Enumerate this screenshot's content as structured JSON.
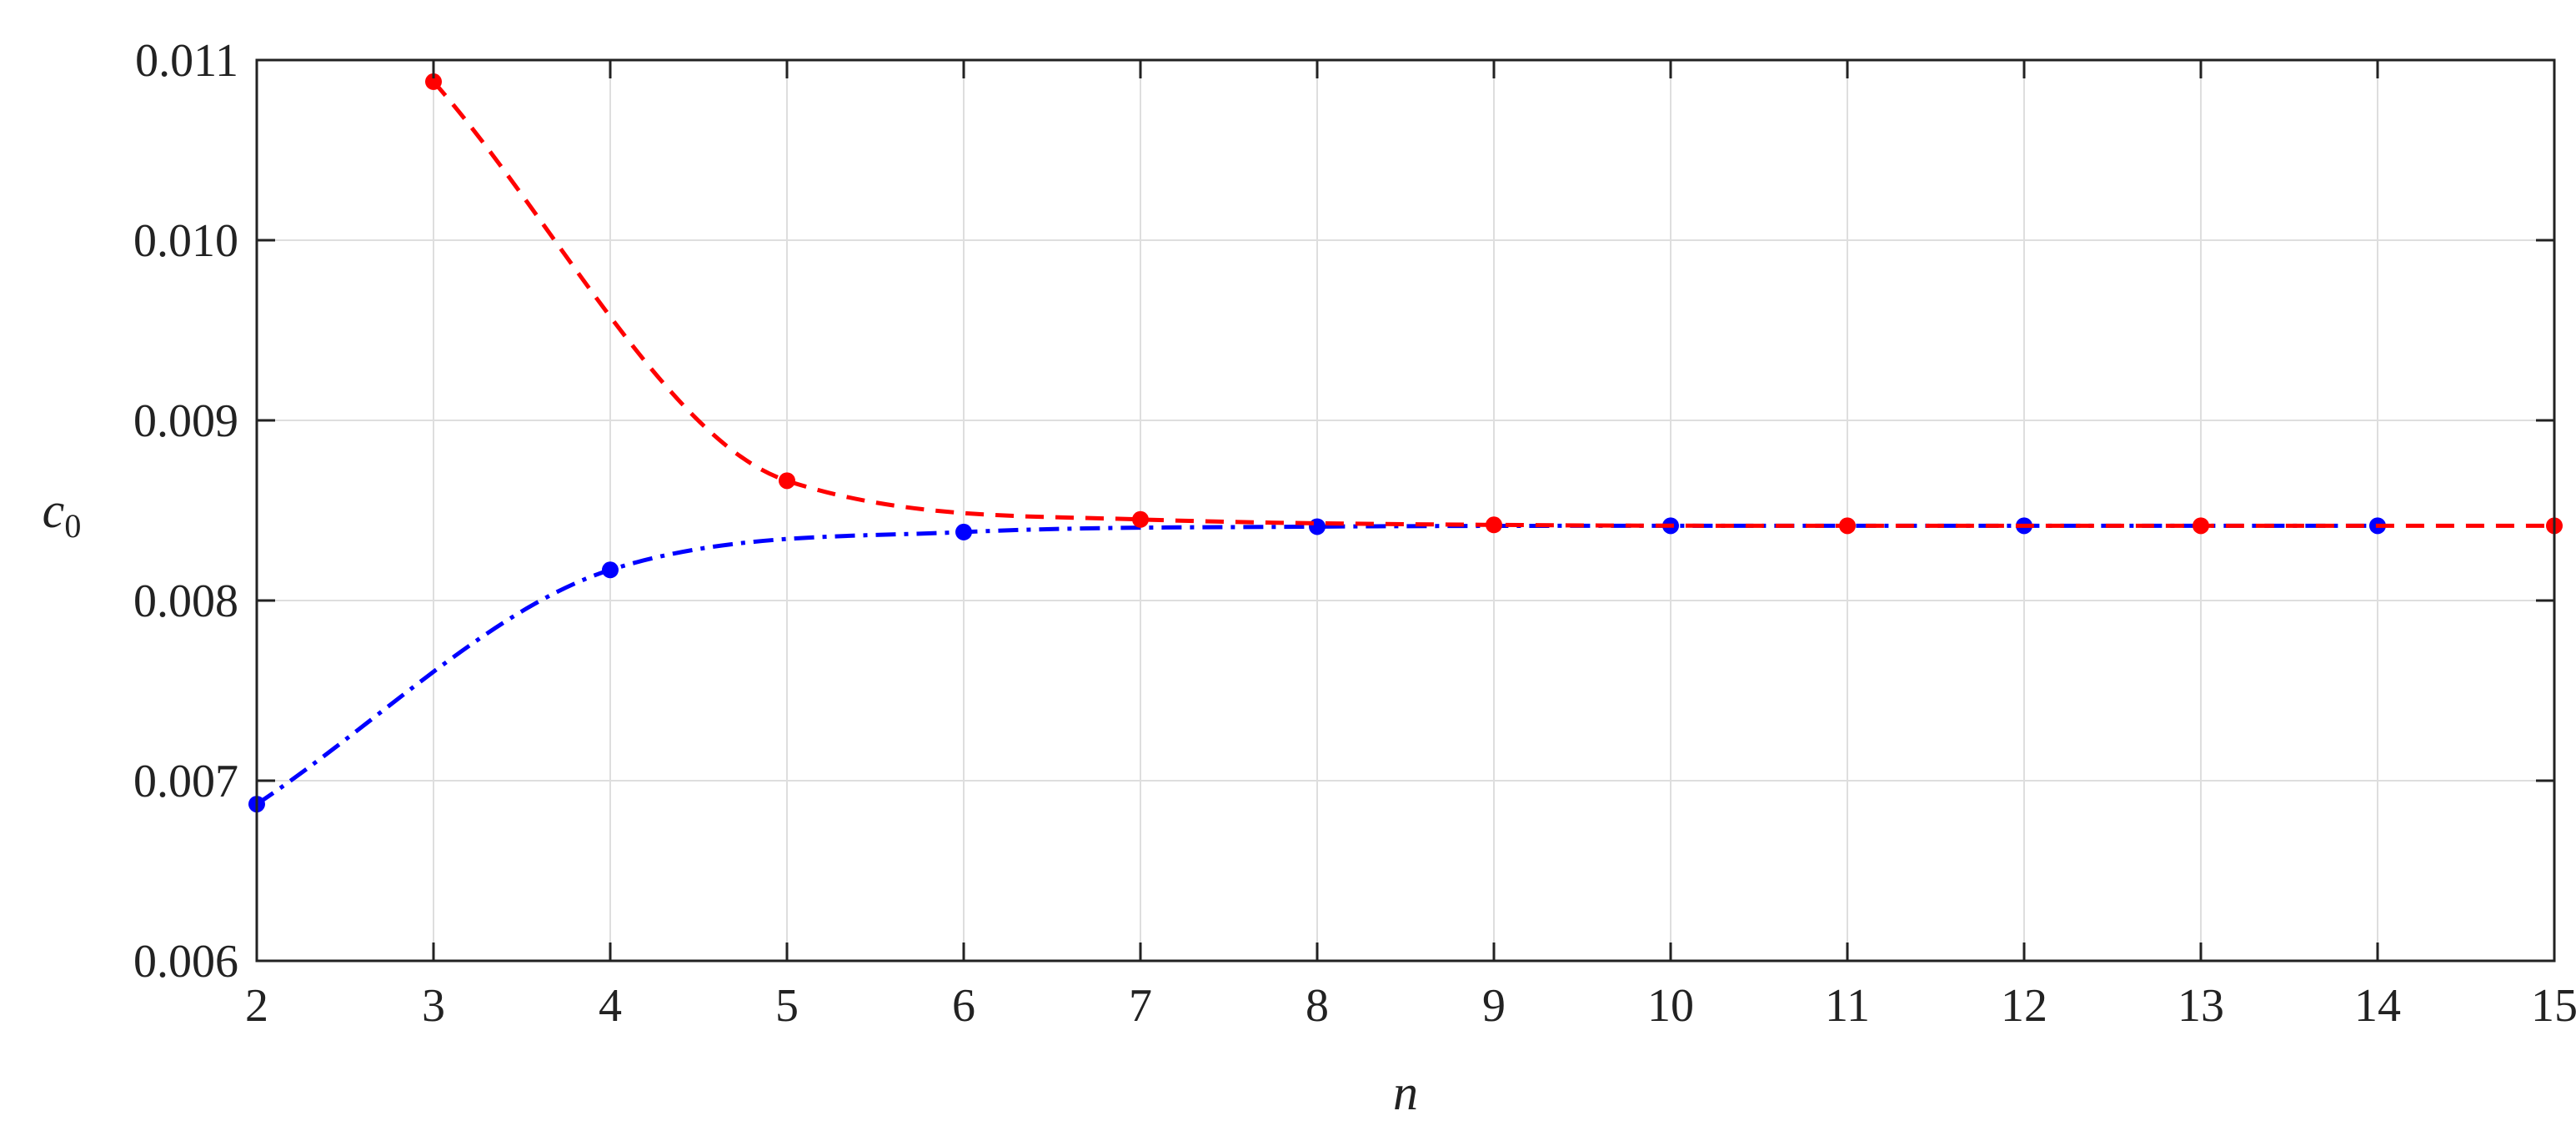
{
  "chart_data": {
    "type": "line",
    "title": "",
    "xlabel": "n",
    "ylabel": "c",
    "ylabel_subscript": "0",
    "xlim": [
      2,
      15
    ],
    "ylim": [
      0.006,
      0.011
    ],
    "x_ticks": [
      2,
      3,
      4,
      5,
      6,
      7,
      8,
      9,
      10,
      11,
      12,
      13,
      14,
      15
    ],
    "x_tick_labels": [
      "2",
      "3",
      "4",
      "5",
      "6",
      "7",
      "8",
      "9",
      "10",
      "11",
      "12",
      "13",
      "14",
      "15"
    ],
    "y_ticks": [
      0.006,
      0.007,
      0.008,
      0.009,
      0.01,
      0.011
    ],
    "y_tick_labels": [
      "0.006",
      "0.007",
      "0.008",
      "0.009",
      "0.010",
      "0.011"
    ],
    "grid": true,
    "legend": "none",
    "series": [
      {
        "color": "#ff0000",
        "line_style": "dashed",
        "marker": "circle",
        "x": [
          3,
          5,
          7,
          9,
          11,
          13,
          15
        ],
        "values": [
          0.01088,
          0.008665,
          0.00845,
          0.00842,
          0.008415,
          0.008415,
          0.008415
        ]
      },
      {
        "color": "#0000ff",
        "line_style": "dash-dot",
        "marker": "circle",
        "x": [
          2,
          4,
          6,
          8,
          10,
          12,
          14
        ],
        "values": [
          0.00687,
          0.00817,
          0.00838,
          0.00841,
          0.008415,
          0.008415,
          0.008415
        ]
      }
    ]
  }
}
